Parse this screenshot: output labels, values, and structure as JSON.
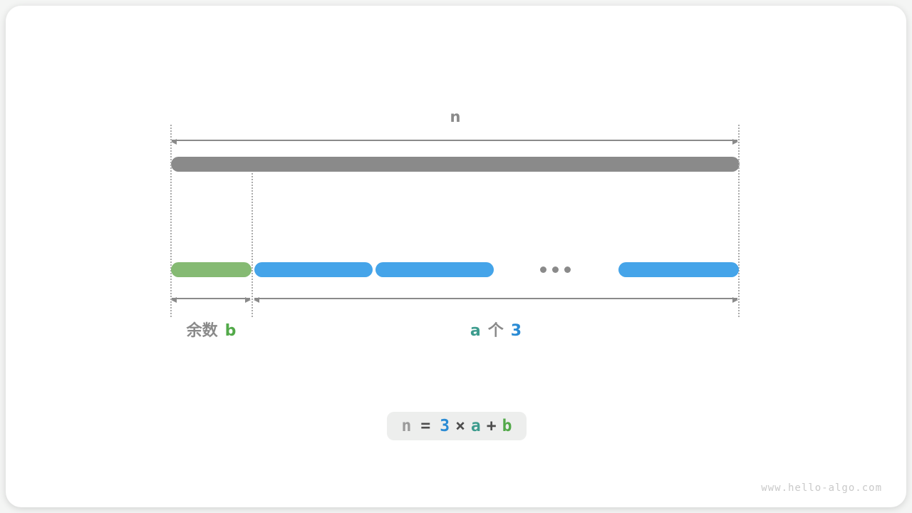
{
  "canvas": {
    "page_background": "#f4f5f4",
    "card_background": "#ffffff"
  },
  "diagram": {
    "total_label": "n",
    "colors": {
      "total_bar": "#8a8a8a",
      "remainder_bar": "#85ba73",
      "chunk_bar": "#45a4e9",
      "arrow": "#8a8a8a",
      "guide_dotted": "#ababab",
      "label_gray": "#8a8a8a",
      "label_green": "#52a949",
      "label_teal": "#3d9c8e",
      "label_blue": "#2a8bd4",
      "formula_box_bg": "#edeeed"
    },
    "remainder_label": {
      "prefix": "余数",
      "variable": "b"
    },
    "chunks_label": {
      "count_variable": "a",
      "classifier": "个",
      "chunk_size": "3"
    },
    "ellipsis_icon": "three-dots",
    "formula": {
      "tokens": [
        {
          "text": "n"
        },
        {
          "text": "="
        },
        {
          "text": "3"
        },
        {
          "text": "×"
        },
        {
          "text": "a"
        },
        {
          "text": "+"
        },
        {
          "text": "b"
        }
      ]
    }
  },
  "footer": {
    "watermark": "www.hello-algo.com"
  }
}
